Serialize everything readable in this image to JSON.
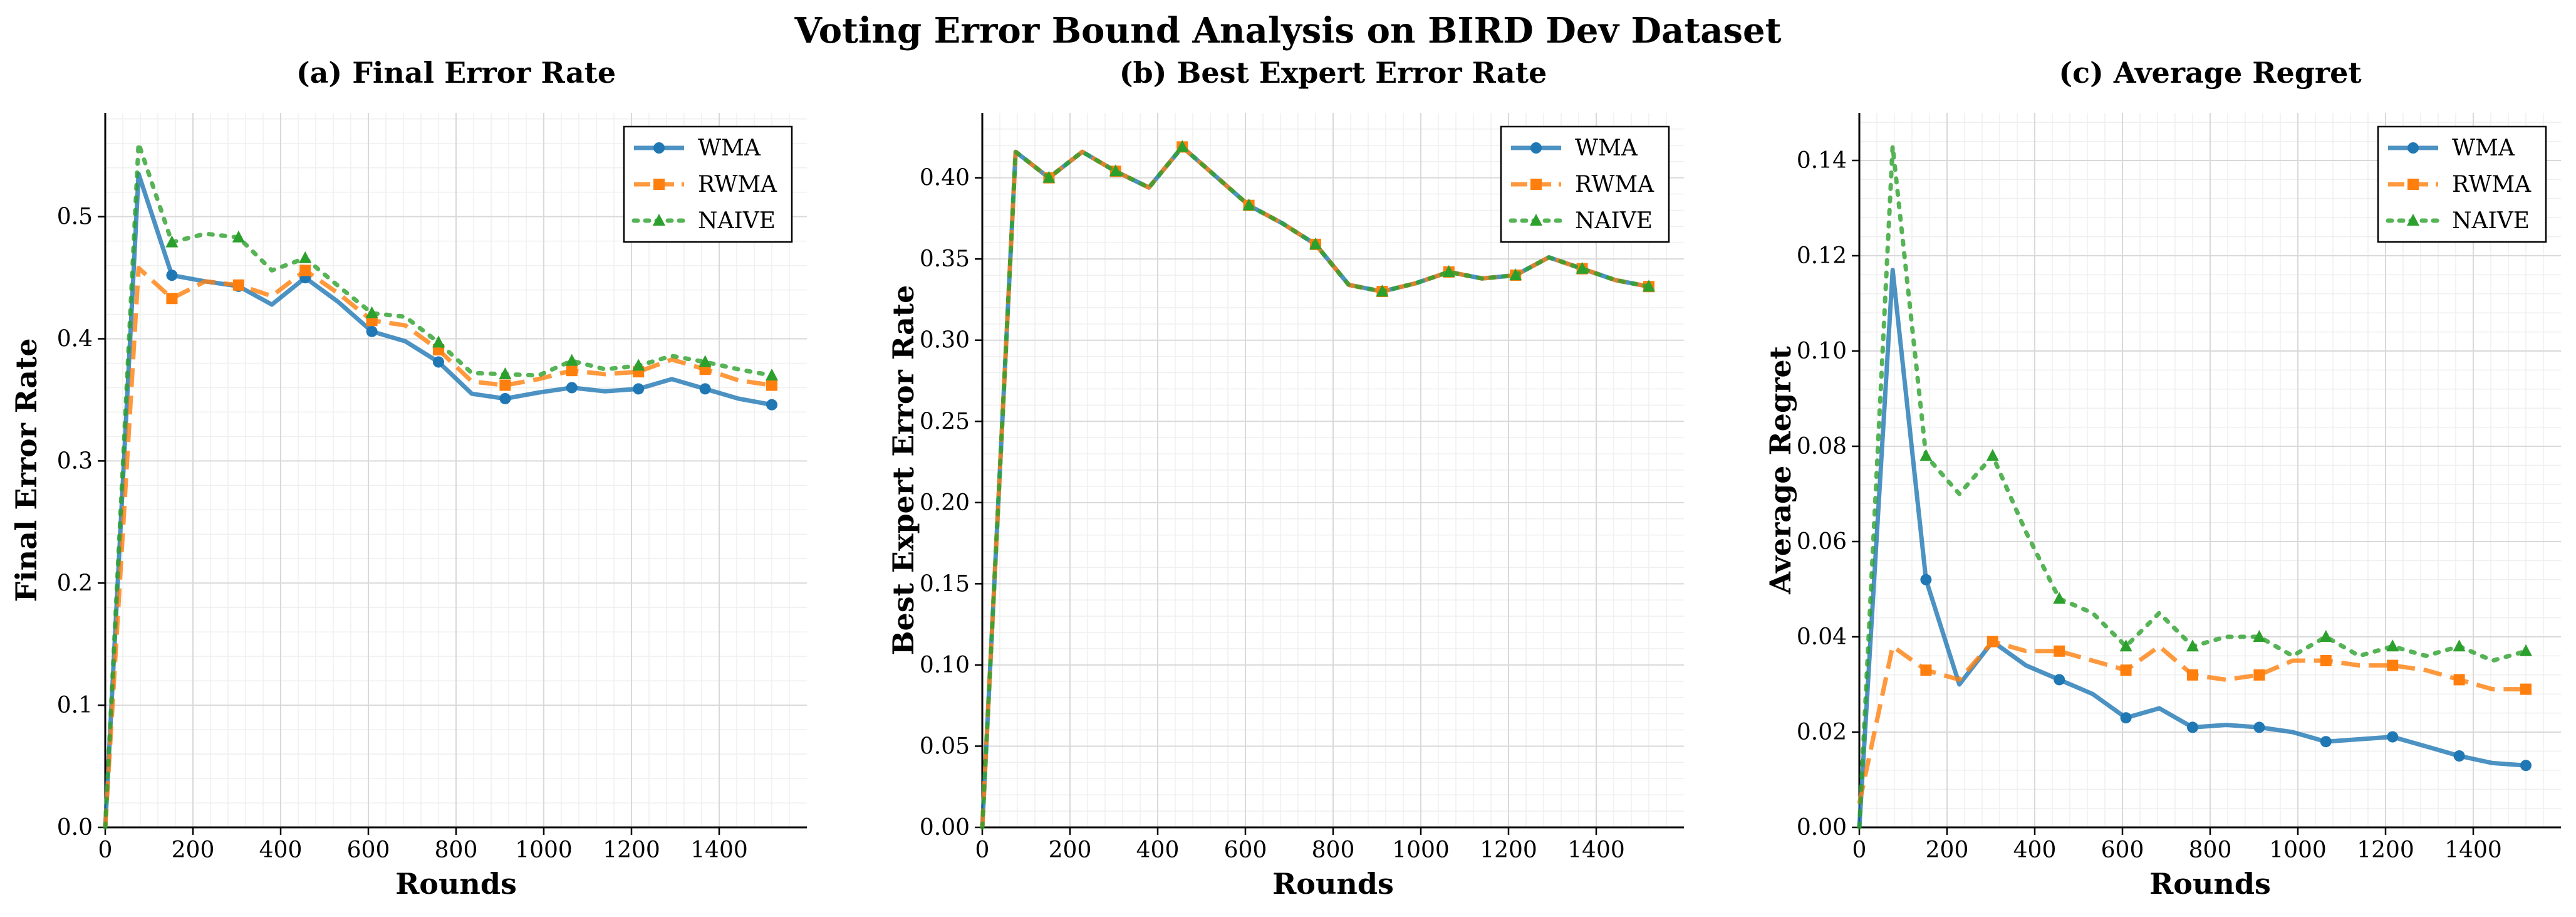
{
  "figure": {
    "title": "Voting Error Bound Analysis on BIRD Dev Dataset"
  },
  "colors": {
    "WMA": "#1f77b4",
    "RWMA": "#ff7f0e",
    "NAIVE": "#2ca02c",
    "grid": "#d9d9d9",
    "grid_minor": "#efefef"
  },
  "chart_data": [
    {
      "type": "line",
      "title": "(a) Final Error Rate",
      "xlabel": "Rounds",
      "ylabel": "Final Error Rate",
      "xlim": [
        0,
        1600
      ],
      "ylim": [
        0,
        0.585
      ],
      "xticks": [
        0,
        200,
        400,
        600,
        800,
        1000,
        1200,
        1400
      ],
      "xtick_labels": [
        "0",
        "200",
        "400",
        "600",
        "800",
        "1000",
        "1200",
        "1400"
      ],
      "yticks": [
        0,
        0.1,
        0.2,
        0.3,
        0.4,
        0.5
      ],
      "ytick_labels": [
        "0.0",
        "0.1",
        "0.2",
        "0.3",
        "0.4",
        "0.5"
      ],
      "grid": true,
      "legend": "top-right",
      "x": [
        0,
        76,
        152,
        228,
        304,
        380,
        456,
        532,
        608,
        684,
        760,
        836,
        912,
        988,
        1064,
        1140,
        1216,
        1292,
        1368,
        1444,
        1520
      ],
      "marker_every": 2,
      "marker_offset": 2,
      "series": [
        {
          "name": "WMA",
          "style": "solid",
          "marker": "circle",
          "values": [
            0.0,
            0.535,
            0.452,
            0.447,
            0.443,
            0.428,
            0.45,
            0.43,
            0.406,
            0.398,
            0.381,
            0.355,
            0.351,
            0.356,
            0.36,
            0.357,
            0.359,
            0.367,
            0.359,
            0.351,
            0.346
          ]
        },
        {
          "name": "RWMA",
          "style": "dashed",
          "marker": "square",
          "values": [
            0.0,
            0.458,
            0.433,
            0.447,
            0.444,
            0.435,
            0.456,
            0.437,
            0.415,
            0.411,
            0.391,
            0.365,
            0.362,
            0.367,
            0.374,
            0.371,
            0.373,
            0.383,
            0.375,
            0.366,
            0.362
          ]
        },
        {
          "name": "NAIVE",
          "style": "dotted",
          "marker": "triangle",
          "values": [
            0.0,
            0.56,
            0.479,
            0.486,
            0.483,
            0.456,
            0.466,
            0.443,
            0.421,
            0.418,
            0.397,
            0.372,
            0.371,
            0.37,
            0.382,
            0.375,
            0.378,
            0.386,
            0.381,
            0.375,
            0.37
          ]
        }
      ]
    },
    {
      "type": "line",
      "title": "(b) Best Expert Error Rate",
      "xlabel": "Rounds",
      "ylabel": "Best Expert Error Rate",
      "xlim": [
        0,
        1600
      ],
      "ylim": [
        0,
        0.44
      ],
      "xticks": [
        0,
        200,
        400,
        600,
        800,
        1000,
        1200,
        1400
      ],
      "xtick_labels": [
        "0",
        "200",
        "400",
        "600",
        "800",
        "1000",
        "1200",
        "1400"
      ],
      "yticks": [
        0,
        0.05,
        0.1,
        0.15,
        0.2,
        0.25,
        0.3,
        0.35,
        0.4
      ],
      "ytick_labels": [
        "0.00",
        "0.05",
        "0.10",
        "0.15",
        "0.20",
        "0.25",
        "0.30",
        "0.35",
        "0.40"
      ],
      "grid": true,
      "legend": "top-right",
      "x": [
        0,
        76,
        152,
        228,
        304,
        380,
        456,
        532,
        608,
        684,
        760,
        836,
        912,
        988,
        1064,
        1140,
        1216,
        1292,
        1368,
        1444,
        1520
      ],
      "marker_every": 2,
      "marker_offset": 2,
      "series": [
        {
          "name": "WMA",
          "style": "solid",
          "marker": "circle",
          "values": [
            0.0,
            0.416,
            0.4,
            0.416,
            0.404,
            0.394,
            0.419,
            0.401,
            0.383,
            0.372,
            0.359,
            0.334,
            0.33,
            0.335,
            0.342,
            0.338,
            0.34,
            0.351,
            0.344,
            0.337,
            0.333
          ]
        },
        {
          "name": "RWMA",
          "style": "dashed",
          "marker": "square",
          "values": [
            0.0,
            0.416,
            0.4,
            0.416,
            0.404,
            0.394,
            0.419,
            0.401,
            0.383,
            0.372,
            0.359,
            0.334,
            0.33,
            0.335,
            0.342,
            0.338,
            0.34,
            0.351,
            0.344,
            0.337,
            0.333
          ]
        },
        {
          "name": "NAIVE",
          "style": "dotted",
          "marker": "triangle",
          "values": [
            0.0,
            0.416,
            0.4,
            0.416,
            0.404,
            0.394,
            0.419,
            0.401,
            0.383,
            0.372,
            0.359,
            0.334,
            0.33,
            0.335,
            0.342,
            0.338,
            0.34,
            0.351,
            0.344,
            0.337,
            0.333
          ]
        }
      ]
    },
    {
      "type": "line",
      "title": "(c) Average Regret",
      "xlabel": "Rounds",
      "ylabel": "Average Regret",
      "xlim": [
        0,
        1600
      ],
      "ylim": [
        0,
        0.15
      ],
      "xticks": [
        0,
        200,
        400,
        600,
        800,
        1000,
        1200,
        1400
      ],
      "xtick_labels": [
        "0",
        "200",
        "400",
        "600",
        "800",
        "1000",
        "1200",
        "1400"
      ],
      "yticks": [
        0,
        0.02,
        0.04,
        0.06,
        0.08,
        0.1,
        0.12,
        0.14
      ],
      "ytick_labels": [
        "0.00",
        "0.02",
        "0.04",
        "0.06",
        "0.08",
        "0.10",
        "0.12",
        "0.14"
      ],
      "grid": true,
      "legend": "top-right",
      "x": [
        0,
        76,
        152,
        228,
        304,
        380,
        456,
        532,
        608,
        684,
        760,
        836,
        912,
        988,
        1064,
        1140,
        1216,
        1292,
        1368,
        1444,
        1520
      ],
      "marker_every": 2,
      "marker_offset": 2,
      "series": [
        {
          "name": "WMA",
          "style": "solid",
          "marker": "circle",
          "values": [
            0.0,
            0.117,
            0.052,
            0.03,
            0.039,
            0.034,
            0.031,
            0.028,
            0.023,
            0.025,
            0.021,
            0.0215,
            0.021,
            0.02,
            0.018,
            0.0185,
            0.019,
            0.017,
            0.015,
            0.0135,
            0.013
          ]
        },
        {
          "name": "RWMA",
          "style": "dashed",
          "marker": "square",
          "values": [
            0.005,
            0.038,
            0.033,
            0.031,
            0.039,
            0.037,
            0.037,
            0.035,
            0.033,
            0.038,
            0.032,
            0.031,
            0.032,
            0.035,
            0.035,
            0.034,
            0.034,
            0.033,
            0.031,
            0.029,
            0.029
          ]
        },
        {
          "name": "NAIVE",
          "style": "dotted",
          "marker": "triangle",
          "values": [
            0.0,
            0.143,
            0.078,
            0.07,
            0.078,
            0.062,
            0.048,
            0.045,
            0.038,
            0.045,
            0.038,
            0.04,
            0.04,
            0.036,
            0.04,
            0.036,
            0.038,
            0.036,
            0.038,
            0.035,
            0.037
          ]
        }
      ]
    }
  ]
}
